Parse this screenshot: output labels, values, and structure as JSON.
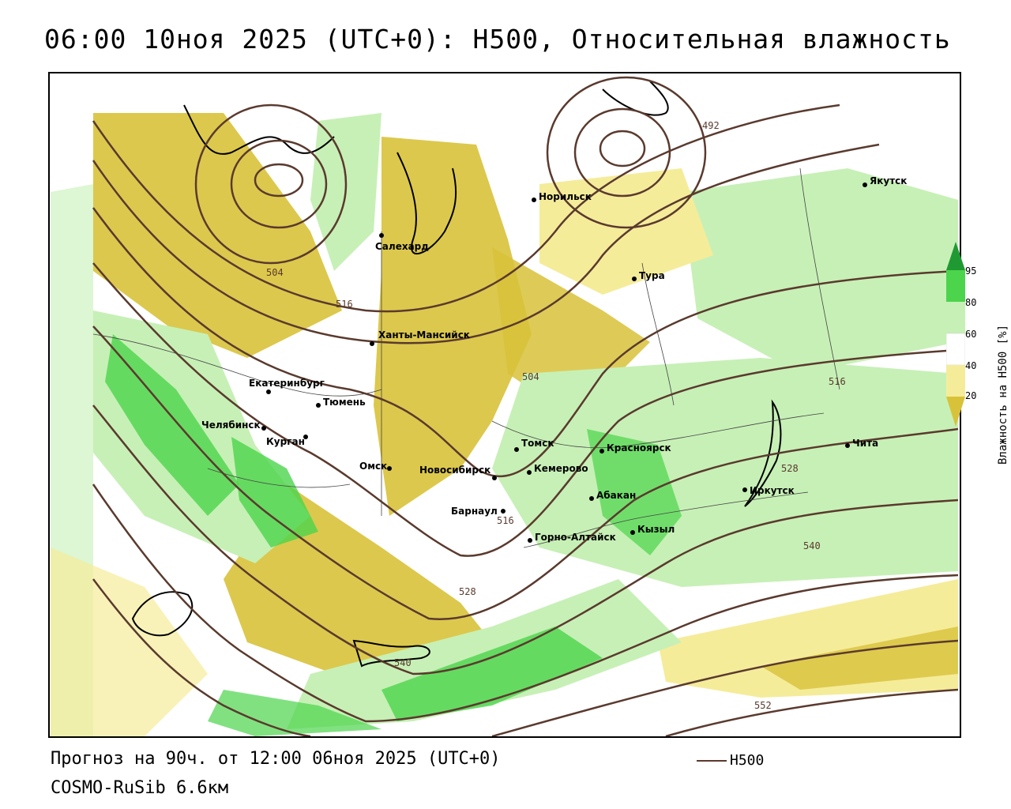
{
  "title": "06:00 10ноя 2025 (UTC+0): H500, Относительная влажность",
  "footer": {
    "forecast": "Прогноз на 90ч. от 12:00 06ноя 2025 (UTC+0)",
    "model": "COSMO-RuSib 6.6км"
  },
  "legend": {
    "contour_label": "H500"
  },
  "colorbar": {
    "title": "Влажность на H500 [%]",
    "ticks": [
      "95",
      "80",
      "60",
      "40",
      "20"
    ],
    "colors": {
      "dry_strong": "#d8c23a",
      "dry": "#f5ec9a",
      "neutral": "#ffffff",
      "moist": "#c7f0b6",
      "moist_strong": "#4cd44c",
      "saturated": "#1f9a32"
    }
  },
  "contour_color": "#5a3a2e",
  "contour_values": [
    "492",
    "504",
    "504",
    "516",
    "516",
    "516",
    "528",
    "528",
    "540",
    "540",
    "552"
  ],
  "cities": [
    "Якутск",
    "Норильск",
    "Салехард",
    "Тура",
    "Ханты-Мансийск",
    "Екатеринбург",
    "Тюмень",
    "Челябинск",
    "Курган",
    "Омск",
    "Новосибирск",
    "Томск",
    "Кемерово",
    "Красноярск",
    "Барнаул",
    "Абакан",
    "Кызыл",
    "Горно-Алтайск",
    "Иркутск",
    "Чита"
  ]
}
